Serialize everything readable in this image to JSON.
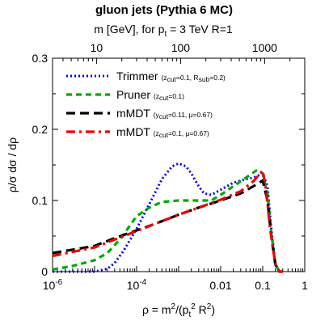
{
  "chart_data": {
    "type": "line",
    "title": "gluon jets (Pythia 6 MC)",
    "top_axis": {
      "label_main": "m [GeV], for p",
      "label_sub": "t",
      "label_rest": " = 3 TeV R=1",
      "tick_labels": [
        "10",
        "100",
        "1000"
      ],
      "tick_values": [
        10,
        100,
        1000
      ]
    },
    "xlabel": {
      "main": "ρ = m",
      "sup1": "2",
      "mid": "/(p",
      "sub": "t",
      "sup2": "2",
      "end": " R",
      "sup3": "2",
      "close": ")"
    },
    "ylabel": "ρ/σ dσ / dρ",
    "x_scale": "log",
    "xlim": [
      1e-06,
      1
    ],
    "ylim": [
      0,
      0.3
    ],
    "x_tick_labels": [
      {
        "value": 1e-06,
        "base": "10",
        "exp": "-6"
      },
      {
        "value": 0.0001,
        "base": "10",
        "exp": "-4"
      },
      {
        "value": 0.01,
        "base": "0.01",
        "exp": ""
      },
      {
        "value": 0.1,
        "base": "0.1",
        "exp": ""
      },
      {
        "value": 1,
        "base": "1",
        "exp": ""
      }
    ],
    "y_tick_labels": [
      {
        "value": 0,
        "label": "0"
      },
      {
        "value": 0.1,
        "label": "0.1"
      },
      {
        "value": 0.2,
        "label": "0.2"
      },
      {
        "value": 0.3,
        "label": "0.3"
      }
    ],
    "legend_position": "top-left",
    "series": [
      {
        "name": "Trimmer",
        "params": "(z_cut=0.1, R_sub=0.2)",
        "color": "#0000ee",
        "style": "dotted",
        "x": [
          1e-06,
          1e-05,
          2e-05,
          3e-05,
          5e-05,
          0.0001,
          0.0002,
          0.0004,
          0.0007,
          0.001,
          0.0015,
          0.002,
          0.003,
          0.004,
          0.006,
          0.01,
          0.02,
          0.04,
          0.06,
          0.1,
          0.13,
          0.16,
          0.2,
          0.25,
          0.3
        ],
        "y": [
          0,
          0,
          0.004,
          0.012,
          0.03,
          0.06,
          0.095,
          0.13,
          0.148,
          0.152,
          0.148,
          0.138,
          0.12,
          0.11,
          0.108,
          0.115,
          0.125,
          0.13,
          0.132,
          0.138,
          0.12,
          0.06,
          0.01,
          0,
          0
        ]
      },
      {
        "name": "Pruner",
        "params": "(z_cut=0.1)",
        "color": "#00aa00",
        "style": "dashed",
        "x": [
          1e-06,
          3e-06,
          1e-05,
          2e-05,
          4e-05,
          7e-05,
          0.0001,
          0.0002,
          0.0004,
          0.001,
          0.003,
          0.006,
          0.01,
          0.02,
          0.04,
          0.07,
          0.1,
          0.13,
          0.16,
          0.2,
          0.25,
          0.3
        ],
        "y": [
          0.003,
          0.008,
          0.016,
          0.026,
          0.045,
          0.065,
          0.078,
          0.09,
          0.098,
          0.1,
          0.1,
          0.1,
          0.108,
          0.12,
          0.132,
          0.142,
          0.138,
          0.11,
          0.055,
          0.01,
          0,
          0
        ]
      },
      {
        "name": "mMDT",
        "params": "(y_cut=0.11, μ=0.67)",
        "color": "#000000",
        "style": "long-dash",
        "x": [
          1e-06,
          1e-05,
          3e-05,
          0.0001,
          0.0003,
          0.001,
          0.003,
          0.01,
          0.03,
          0.06,
          0.1,
          0.13,
          0.16,
          0.2,
          0.25,
          0.3
        ],
        "y": [
          0.026,
          0.036,
          0.047,
          0.058,
          0.068,
          0.08,
          0.09,
          0.1,
          0.11,
          0.12,
          0.128,
          0.1,
          0.05,
          0.01,
          0,
          0
        ]
      },
      {
        "name": "mMDT",
        "params": "(z_cut=0.1, μ=0.67)",
        "color": "#ee0000",
        "style": "dash-dot",
        "x": [
          1e-06,
          1e-05,
          3e-05,
          0.0001,
          0.0003,
          0.001,
          0.003,
          0.01,
          0.03,
          0.06,
          0.1,
          0.12,
          0.15,
          0.2,
          0.25,
          0.3
        ],
        "y": [
          0.022,
          0.034,
          0.045,
          0.057,
          0.068,
          0.08,
          0.09,
          0.101,
          0.113,
          0.127,
          0.142,
          0.115,
          0.06,
          0.01,
          0,
          0
        ]
      }
    ],
    "legend": [
      {
        "name": "Trimmer",
        "sub_parts": [
          [
            "(z",
            ""
          ],
          [
            "cut",
            "sub"
          ],
          [
            "=0.1, R",
            ""
          ],
          [
            "sub",
            "sub"
          ],
          [
            "=0.2)",
            ""
          ]
        ]
      },
      {
        "name": "Pruner",
        "sub_parts": [
          [
            "(z",
            ""
          ],
          [
            "cut",
            "sub"
          ],
          [
            "=0.1)",
            ""
          ]
        ]
      },
      {
        "name": "mMDT",
        "sub_parts": [
          [
            "(y",
            ""
          ],
          [
            "cut",
            "sub"
          ],
          [
            "=0.11, μ=0.67)",
            ""
          ]
        ]
      },
      {
        "name": "mMDT",
        "sub_parts": [
          [
            "(z",
            ""
          ],
          [
            "cut",
            "sub"
          ],
          [
            "=0.1, μ=0.67)",
            ""
          ]
        ]
      }
    ]
  }
}
